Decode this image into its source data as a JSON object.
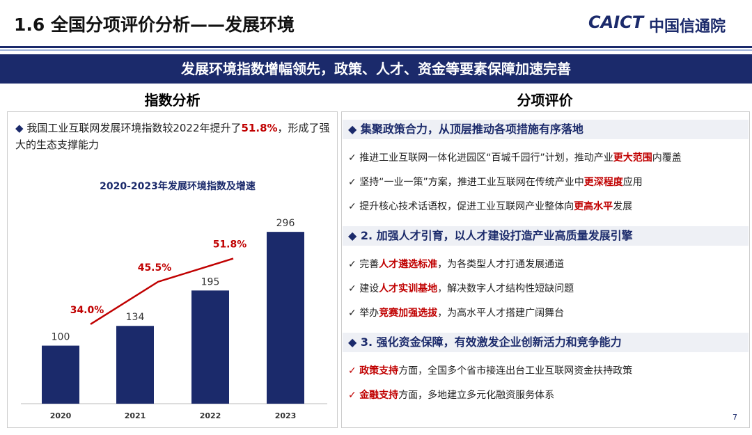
{
  "header": {
    "title": "1.6  全国分项评价分析——发展环境",
    "logo_en": "CAICT",
    "logo_cn": "中国信通院"
  },
  "banner": "发展环境指数增幅领先，政策、人才、资金等要素保障加速完善",
  "left": {
    "heading": "指数分析",
    "bullet": [
      {
        "text": "我国工业互联网发展环境指数较2022年提升了"
      },
      {
        "text": "51.8%",
        "strong": true
      },
      {
        "text": "，形成了强大的生态支撑能力"
      }
    ],
    "chart": {
      "type": "bar",
      "title": "2020-2023年发展环境指数及增速",
      "categories": [
        "2020",
        "2021",
        "2022",
        "2023"
      ],
      "values": [
        100,
        134,
        195,
        296
      ],
      "color": "#1b2a6b",
      "growth": {
        "values": [
          34.0,
          45.5,
          51.8
        ],
        "value_labels": [
          "34.0%",
          "45.5%",
          "51.8%"
        ],
        "color": "#c00000"
      }
    }
  },
  "right": {
    "heading": "分项评价",
    "sections": [
      {
        "title": "集聚政策合力，从顶层推动各项措施有序落地",
        "items": [
          [
            {
              "text": "推进工业互联网一体化进园区“百城千园行”计划，推动产业"
            },
            {
              "text": "更大范围",
              "strong": true
            },
            {
              "text": "内覆盖"
            }
          ],
          [
            {
              "text": "坚持“一业一策”方案，推进工业互联网在传统产业中"
            },
            {
              "text": "更深程度",
              "strong": true
            },
            {
              "text": "应用"
            }
          ],
          [
            {
              "text": "提升核心技术话语权，促进工业互联网产业整体向"
            },
            {
              "text": "更高水平",
              "strong": true
            },
            {
              "text": "发展"
            }
          ]
        ]
      },
      {
        "title": "2. 加强人才引育，以人才建设打造产业高质量发展引擎",
        "items": [
          [
            {
              "text": "完善"
            },
            {
              "text": "人才遴选标准",
              "strong": true
            },
            {
              "text": "，为各类型人才打通发展通道"
            }
          ],
          [
            {
              "text": "建设"
            },
            {
              "text": "人才实训基地",
              "strong": true
            },
            {
              "text": "，解决数字人才结构性短缺问题"
            }
          ],
          [
            {
              "text": "举办"
            },
            {
              "text": "竞赛加强选拔",
              "strong": true
            },
            {
              "text": "，为高水平人才搭建广阔舞台"
            }
          ]
        ]
      },
      {
        "title": "3. 强化资金保障，有效激发企业创新活力和竞争能力",
        "items": [
          [
            {
              "text": "政策支持",
              "strong": true
            },
            {
              "text": "方面，全国多个省市接连出台工业互联网资金扶持政策"
            }
          ],
          [
            {
              "text": "金融支持",
              "strong": true
            },
            {
              "text": "方面，多地建立多元化融资服务体系"
            }
          ]
        ]
      }
    ]
  },
  "page_number": "7"
}
